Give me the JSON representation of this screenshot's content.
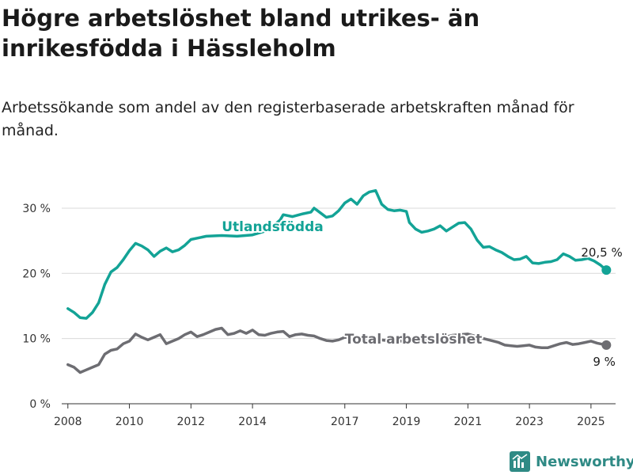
{
  "title": "Högre arbetslöshet bland utrikes- än inrikesfödda i Hässleholm",
  "subtitle": "Arbetssökande som andel av den registerbaserade arbetskraften månad för månad.",
  "brand": {
    "name": "Newsworthy"
  },
  "chart_data": {
    "type": "line",
    "xlabel": "",
    "ylabel": "",
    "xlim": [
      2007.8,
      2025.8
    ],
    "ylim": [
      0,
      34
    ],
    "x_ticks": [
      {
        "value": 2008,
        "label": "2008"
      },
      {
        "value": 2010,
        "label": "2010"
      },
      {
        "value": 2012,
        "label": "2012"
      },
      {
        "value": 2014,
        "label": "2014"
      },
      {
        "value": 2017,
        "label": "2017"
      },
      {
        "value": 2019,
        "label": "2019"
      },
      {
        "value": 2021,
        "label": "2021"
      },
      {
        "value": 2023,
        "label": "2023"
      },
      {
        "value": 2025,
        "label": "2025"
      }
    ],
    "y_ticks": [
      {
        "value": 0,
        "label": "0 %"
      },
      {
        "value": 10,
        "label": "10 %"
      },
      {
        "value": 20,
        "label": "20 %"
      },
      {
        "value": 30,
        "label": "30 %"
      }
    ],
    "grid": "horizontal",
    "series": [
      {
        "name": "Utlandsfödda",
        "color": "#13a396",
        "end_label": "20,5 %",
        "x": [
          2008.0,
          2008.2,
          2008.4,
          2008.6,
          2008.8,
          2009.0,
          2009.2,
          2009.4,
          2009.6,
          2009.8,
          2010.0,
          2010.2,
          2010.4,
          2010.6,
          2010.8,
          2011.0,
          2011.2,
          2011.4,
          2011.6,
          2011.8,
          2012.0,
          2012.5,
          2013.0,
          2013.5,
          2014.0,
          2014.5,
          2014.9,
          2015.0,
          2015.3,
          2015.6,
          2015.9,
          2016.0,
          2016.2,
          2016.4,
          2016.6,
          2016.8,
          2017.0,
          2017.2,
          2017.4,
          2017.6,
          2017.8,
          2018.0,
          2018.2,
          2018.4,
          2018.6,
          2018.8,
          2019.0,
          2019.1,
          2019.3,
          2019.5,
          2019.7,
          2019.9,
          2020.1,
          2020.3,
          2020.5,
          2020.7,
          2020.9,
          2021.1,
          2021.3,
          2021.5,
          2021.7,
          2021.9,
          2022.1,
          2022.3,
          2022.5,
          2022.7,
          2022.9,
          2023.1,
          2023.3,
          2023.5,
          2023.7,
          2023.9,
          2024.1,
          2024.3,
          2024.5,
          2024.7,
          2024.9,
          2025.1,
          2025.3,
          2025.5
        ],
        "values": [
          14.6,
          14.0,
          13.2,
          13.1,
          14.0,
          15.5,
          18.3,
          20.2,
          20.9,
          22.1,
          23.5,
          24.6,
          24.2,
          23.6,
          22.6,
          23.4,
          23.9,
          23.3,
          23.6,
          24.3,
          25.2,
          25.7,
          25.8,
          25.7,
          25.9,
          26.6,
          28.2,
          29.0,
          28.7,
          29.1,
          29.4,
          30.0,
          29.3,
          28.6,
          28.8,
          29.6,
          30.8,
          31.4,
          30.6,
          31.9,
          32.5,
          32.7,
          30.6,
          29.8,
          29.6,
          29.7,
          29.5,
          27.8,
          26.8,
          26.3,
          26.5,
          26.8,
          27.3,
          26.5,
          27.1,
          27.7,
          27.8,
          26.8,
          25.1,
          24.0,
          24.1,
          23.6,
          23.2,
          22.6,
          22.1,
          22.2,
          22.6,
          21.6,
          21.5,
          21.7,
          21.8,
          22.1,
          23.0,
          22.6,
          22.0,
          22.1,
          22.3,
          21.9,
          21.3,
          20.5
        ]
      },
      {
        "name": "Total arbetslöshet",
        "color": "#6d6d72",
        "end_label": "9 %",
        "x": [
          2008.0,
          2008.2,
          2008.4,
          2008.6,
          2008.8,
          2009.0,
          2009.2,
          2009.4,
          2009.6,
          2009.8,
          2010.0,
          2010.2,
          2010.4,
          2010.6,
          2010.8,
          2011.0,
          2011.2,
          2011.4,
          2011.6,
          2011.8,
          2012.0,
          2012.2,
          2012.4,
          2012.6,
          2012.8,
          2013.0,
          2013.2,
          2013.4,
          2013.6,
          2013.8,
          2014.0,
          2014.2,
          2014.4,
          2014.6,
          2014.8,
          2015.0,
          2015.2,
          2015.4,
          2015.6,
          2015.8,
          2016.0,
          2016.2,
          2016.4,
          2016.6,
          2016.8,
          2017.0,
          2017.5,
          2018.0,
          2018.5,
          2019.0,
          2019.5,
          2020.0,
          2020.5,
          2021.0,
          2021.5,
          2022.0,
          2022.2,
          2022.4,
          2022.6,
          2022.8,
          2023.0,
          2023.2,
          2023.4,
          2023.6,
          2023.8,
          2024.0,
          2024.2,
          2024.4,
          2024.6,
          2024.8,
          2025.0,
          2025.2,
          2025.4,
          2025.5
        ],
        "values": [
          6.0,
          5.6,
          4.8,
          5.2,
          5.6,
          6.0,
          7.6,
          8.2,
          8.4,
          9.2,
          9.6,
          10.7,
          10.2,
          9.8,
          10.2,
          10.6,
          9.2,
          9.6,
          10.0,
          10.6,
          11.0,
          10.3,
          10.6,
          11.0,
          11.4,
          11.6,
          10.6,
          10.8,
          11.2,
          10.8,
          11.3,
          10.6,
          10.5,
          10.8,
          11.0,
          11.1,
          10.3,
          10.6,
          10.7,
          10.5,
          10.4,
          10.0,
          9.7,
          9.6,
          9.8,
          10.2,
          10.0,
          9.9,
          9.6,
          9.6,
          9.6,
          9.9,
          10.5,
          10.7,
          10.0,
          9.4,
          9.0,
          8.9,
          8.8,
          8.9,
          9.0,
          8.7,
          8.6,
          8.6,
          8.9,
          9.2,
          9.4,
          9.1,
          9.2,
          9.4,
          9.6,
          9.3,
          9.1,
          9.0
        ]
      }
    ]
  }
}
